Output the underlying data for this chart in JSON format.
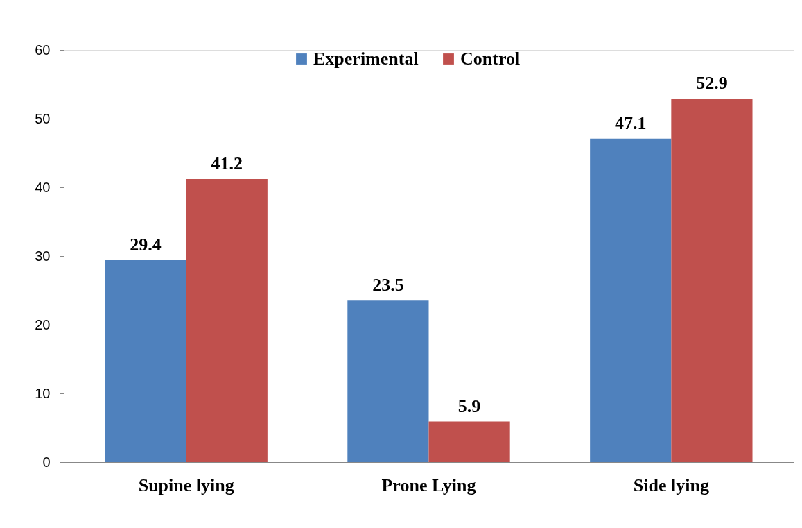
{
  "chart_data": {
    "type": "bar",
    "categories": [
      "Supine lying",
      "Prone Lying",
      "Side lying"
    ],
    "series": [
      {
        "name": "Experimental",
        "color": "#4f81bd",
        "values": [
          29.4,
          23.5,
          47.1
        ]
      },
      {
        "name": "Control",
        "color": "#c0504d",
        "values": [
          41.2,
          5.9,
          52.9
        ]
      }
    ],
    "ylim": [
      0,
      60
    ],
    "yticks": [
      0,
      10,
      20,
      30,
      40,
      50,
      60
    ],
    "data_labels": true,
    "legend": "top",
    "grid": false
  }
}
